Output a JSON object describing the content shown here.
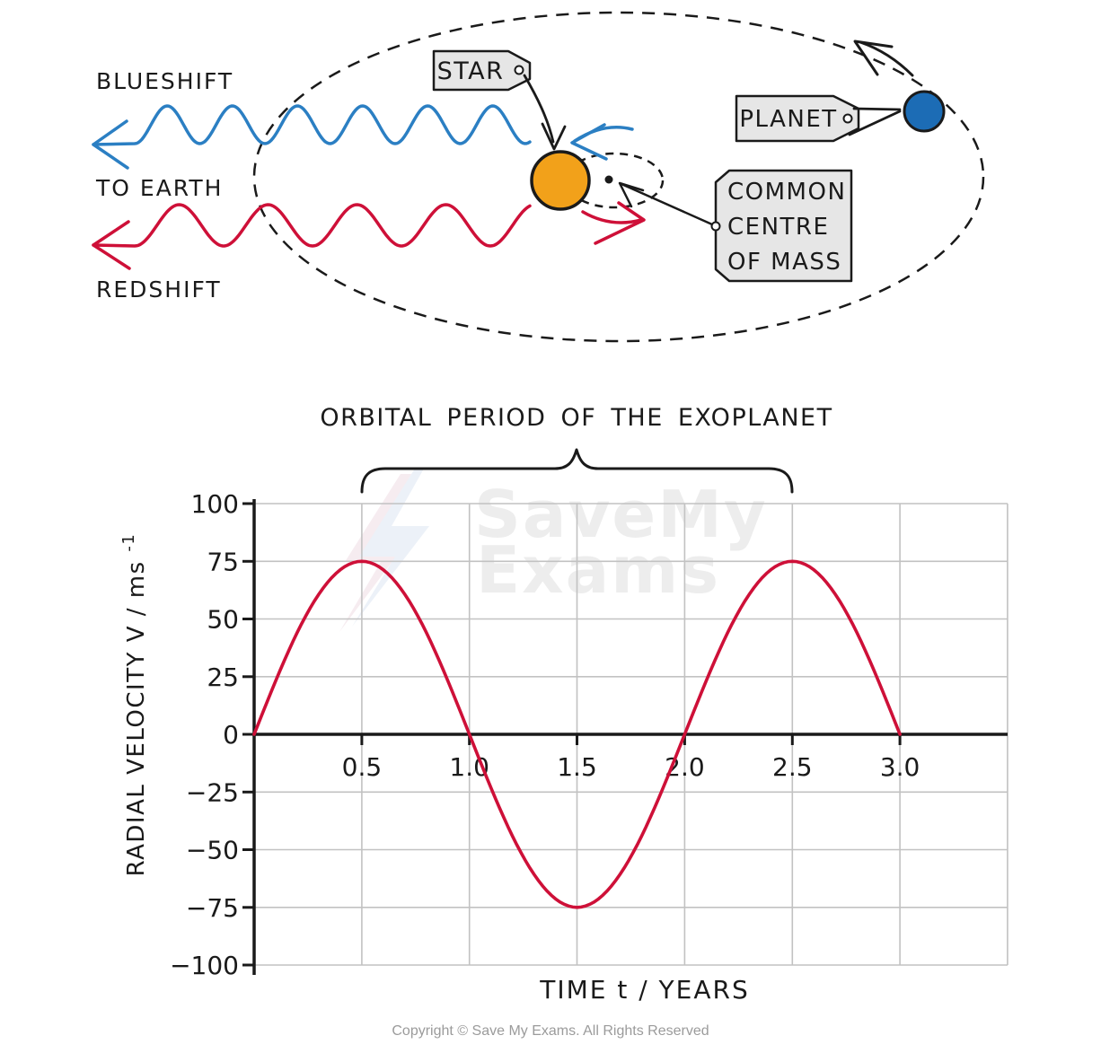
{
  "diagram": {
    "labels": {
      "blueshift": "BLUESHIFT",
      "to_earth": "TO EARTH",
      "redshift": "REDSHIFT",
      "star_tag": "STAR",
      "planet_tag": "PLANET",
      "com_line1": "COMMON",
      "com_line2": "CENTRE",
      "com_line3": "OF MASS"
    },
    "colors": {
      "blueshift_wave": "#2B7FC3",
      "redshift_wave": "#CE1038",
      "star_fill": "#F2A11A",
      "planet_fill": "#1C6CB5",
      "tag_fill": "#E6E6E6",
      "ink": "#1A1A1A"
    }
  },
  "chart": {
    "title": "ORBITAL PERIOD OF THE EXOPLANET",
    "xlabel": "TIME t / YEARS",
    "ylabel_main": "RADIAL VELOCITY V / ms",
    "ylabel_exponent": "-1"
  },
  "chart_data": {
    "type": "line",
    "title": "ORBITAL PERIOD OF THE EXOPLANET",
    "xlabel": "TIME t / YEARS",
    "ylabel": "RADIAL VELOCITY V / ms^-1",
    "xlim": [
      0,
      3.5
    ],
    "ylim": [
      -100,
      100
    ],
    "grid": true,
    "x_ticks": [
      0.5,
      1.0,
      1.5,
      2.0,
      2.5,
      3.0
    ],
    "x_tick_labels": [
      "0.5",
      "1.0",
      "1.5",
      "2.0",
      "2.5",
      "3.0"
    ],
    "y_ticks": [
      100,
      75,
      50,
      25,
      0,
      -25,
      -50,
      -75,
      -100
    ],
    "y_tick_labels": [
      "100",
      "75",
      "50",
      "25",
      "0",
      "−25",
      "−50",
      "−75",
      "−100"
    ],
    "series": [
      {
        "name": "radial velocity of star",
        "model": "V = 75·sin(2π·t / 2)",
        "amplitude": 75,
        "period_years": 2,
        "t_range_years": [
          0,
          3
        ],
        "zero_crossings_years": [
          0,
          1.0,
          2.0,
          3.0
        ],
        "peaks": [
          {
            "t": 0.5,
            "v": 75
          },
          {
            "t": 2.5,
            "v": 75
          }
        ],
        "troughs": [
          {
            "t": 1.5,
            "v": -75
          }
        ],
        "color": "#CE1038"
      }
    ],
    "annotation_brace": {
      "from_years": 0.5,
      "to_years": 2.5,
      "label": "ORBITAL PERIOD OF THE EXOPLANET"
    }
  },
  "watermark": {
    "line1": "SaveMy",
    "line2": "Exams"
  },
  "footer": {
    "copyright": "Copyright © Save My Exams. All Rights Reserved"
  }
}
